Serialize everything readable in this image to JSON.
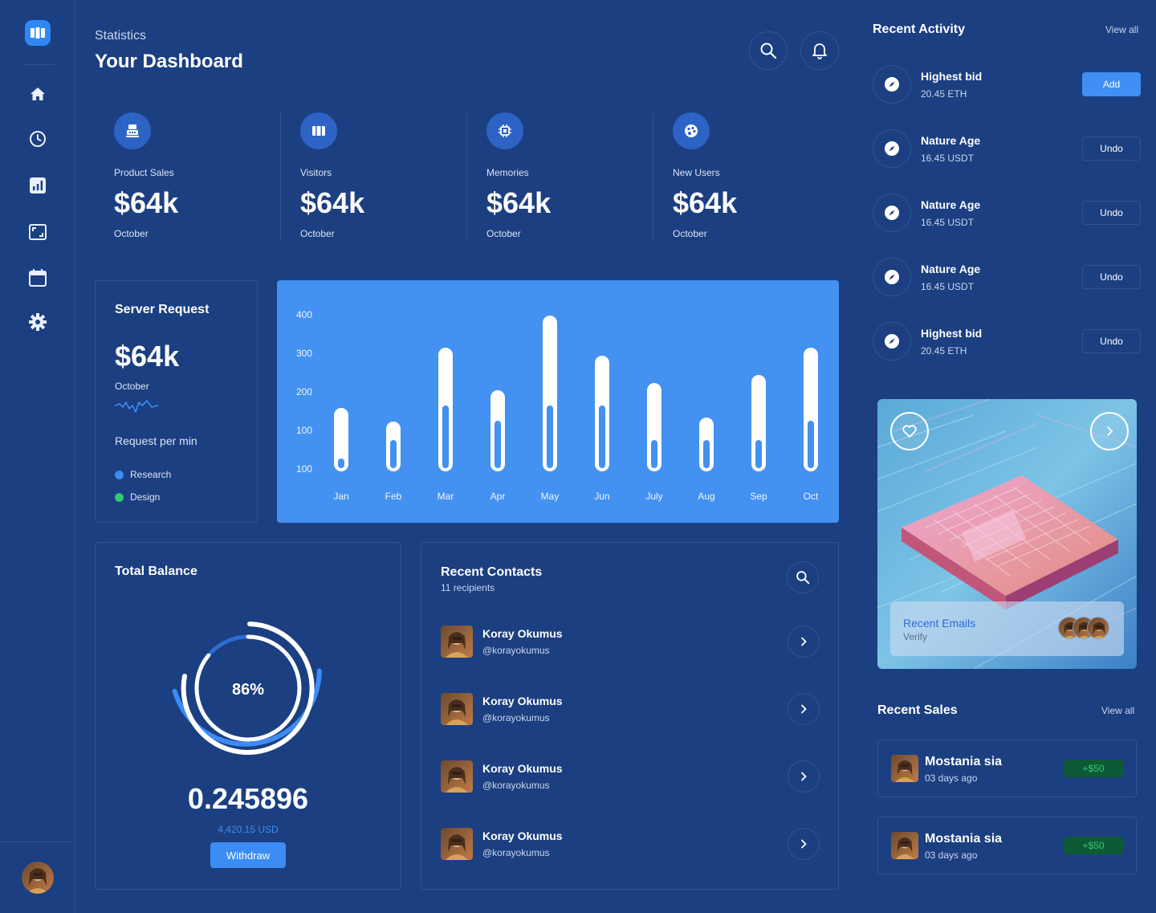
{
  "header": {
    "subtitle": "Statistics",
    "title": "Your Dashboard"
  },
  "sidebar": {
    "logo": "logo-icon",
    "items": [
      {
        "icon": "home-icon"
      },
      {
        "icon": "clock-icon"
      },
      {
        "icon": "chart-icon"
      },
      {
        "icon": "screen-icon"
      },
      {
        "icon": "calendar-icon"
      },
      {
        "icon": "gear-icon"
      }
    ]
  },
  "stats": [
    {
      "icon": "register-icon",
      "label": "Product Sales",
      "value": "$64k",
      "period": "October"
    },
    {
      "icon": "film-icon",
      "label": "Visitors",
      "value": "$64k",
      "period": "October"
    },
    {
      "icon": "chip-icon",
      "label": "Memories",
      "value": "$64k",
      "period": "October"
    },
    {
      "icon": "palette-icon",
      "label": "New Users",
      "value": "$64k",
      "period": "October"
    }
  ],
  "server_request": {
    "title": "Server Request",
    "value": "$64k",
    "period": "October",
    "rpm_label": "Request per min",
    "legend": [
      {
        "label": "Research",
        "color": "#3b8cf5"
      },
      {
        "label": "Design",
        "color": "#2ecc6e"
      }
    ]
  },
  "chart_data": {
    "type": "bar",
    "title": "",
    "categories": [
      "Jan",
      "Feb",
      "Mar",
      "Apr",
      "May",
      "Jun",
      "July",
      "Aug",
      "Sep",
      "Oct"
    ],
    "series": [
      {
        "name": "Total",
        "values": [
          165,
          130,
          320,
          210,
          405,
          300,
          230,
          140,
          250,
          320
        ]
      },
      {
        "name": "Inner",
        "values": [
          40,
          90,
          180,
          140,
          180,
          180,
          90,
          90,
          90,
          140
        ]
      }
    ],
    "y_tick_labels": [
      "400",
      "300",
      "200",
      "100",
      "100"
    ],
    "ylim": [
      0,
      400
    ],
    "xlabel": "",
    "ylabel": ""
  },
  "total_balance": {
    "title": "Total Balance",
    "percent_label": "86%",
    "percent": 86,
    "value": "0.245896",
    "usd": "4,420.15 USD",
    "withdraw_label": "Withdraw"
  },
  "recent_contacts": {
    "title": "Recent Contacts",
    "subtitle": "11 recipients",
    "contacts": [
      {
        "name": "Koray Okumus",
        "handle": "@korayokumus"
      },
      {
        "name": "Koray Okumus",
        "handle": "@korayokumus"
      },
      {
        "name": "Koray Okumus",
        "handle": "@korayokumus"
      },
      {
        "name": "Koray Okumus",
        "handle": "@korayokumus"
      }
    ]
  },
  "recent_activity": {
    "title": "Recent Activity",
    "view_all": "View all",
    "items": [
      {
        "name": "Highest bid",
        "sub": "20.45 ETH",
        "action": "Add"
      },
      {
        "name": "Nature Age",
        "sub": "16.45 USDT",
        "action": "Undo"
      },
      {
        "name": "Nature Age",
        "sub": "16.45 USDT",
        "action": "Undo"
      },
      {
        "name": "Nature Age",
        "sub": "16.45 USDT",
        "action": "Undo"
      },
      {
        "name": "Highest bid",
        "sub": "20.45 ETH",
        "action": "Undo"
      }
    ]
  },
  "image_card": {
    "title": "Recent Emails",
    "subtitle": "Verify"
  },
  "recent_sales": {
    "title": "Recent Sales",
    "view_all": "View all",
    "items": [
      {
        "name": "Mostania sia",
        "time": "03 days ago",
        "amount": "+$50"
      },
      {
        "name": "Mostania sia",
        "time": "03 days ago",
        "amount": "+$50"
      }
    ]
  },
  "colors": {
    "background": "#1b3f80",
    "accent": "#3b8cf5",
    "chart_bg": "#4391f0",
    "positive": "#2ecc6e"
  }
}
